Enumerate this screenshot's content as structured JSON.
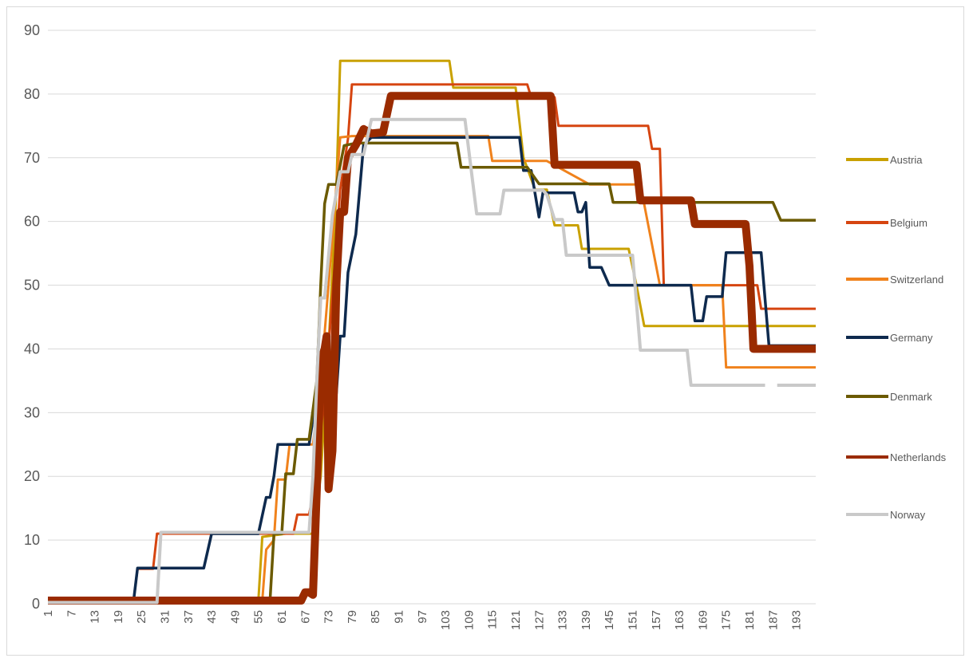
{
  "chart_data": {
    "type": "line",
    "title": "",
    "xlabel": "",
    "ylabel": "",
    "ylim": [
      0,
      90
    ],
    "y_ticks": [
      "0",
      "10",
      "20",
      "30",
      "40",
      "50",
      "60",
      "70",
      "80",
      "90"
    ],
    "x_range": [
      1,
      198
    ],
    "x_tick_labels": [
      "1",
      "7",
      "13",
      "19",
      "25",
      "31",
      "37",
      "43",
      "49",
      "55",
      "61",
      "67",
      "73",
      "79",
      "85",
      "91",
      "97",
      "103",
      "109",
      "115",
      "121",
      "127",
      "133",
      "139",
      "145",
      "151",
      "157",
      "163",
      "169",
      "175",
      "181",
      "187",
      "193"
    ],
    "grid": "horizontal",
    "legend_position": "right",
    "series": [
      {
        "name": "Austria",
        "color": "#c9a100",
        "points": [
          [
            1,
            0.5
          ],
          [
            55,
            0.5
          ],
          [
            56,
            10.5
          ],
          [
            62,
            11
          ],
          [
            69,
            11
          ],
          [
            71,
            20
          ],
          [
            73,
            40
          ],
          [
            75,
            65
          ],
          [
            76,
            85.2
          ],
          [
            104,
            85.2
          ],
          [
            105,
            81
          ],
          [
            121,
            81
          ],
          [
            123,
            70
          ],
          [
            126,
            65
          ],
          [
            129,
            65
          ],
          [
            131,
            59.4
          ],
          [
            137,
            59.4
          ],
          [
            138,
            55.7
          ],
          [
            150,
            55.7
          ],
          [
            152,
            50
          ],
          [
            154,
            43.6
          ],
          [
            198,
            43.6
          ]
        ]
      },
      {
        "name": "Belgium",
        "color": "#d64510",
        "points": [
          [
            1,
            0.5
          ],
          [
            23,
            0.5
          ],
          [
            24,
            5.5
          ],
          [
            28,
            5.5
          ],
          [
            29,
            11
          ],
          [
            64,
            11
          ],
          [
            65,
            14
          ],
          [
            68,
            14
          ],
          [
            70,
            20
          ],
          [
            73,
            40
          ],
          [
            76,
            65
          ],
          [
            78,
            73
          ],
          [
            79,
            81.5
          ],
          [
            124,
            81.5
          ],
          [
            125,
            79.5
          ],
          [
            131,
            79.5
          ],
          [
            132,
            75
          ],
          [
            155,
            75
          ],
          [
            156,
            71.4
          ],
          [
            158,
            71.4
          ],
          [
            159,
            50
          ],
          [
            162,
            50
          ],
          [
            163,
            50
          ],
          [
            183,
            50
          ],
          [
            184,
            46.3
          ],
          [
            198,
            46.3
          ]
        ]
      },
      {
        "name": "Switzerland",
        "color": "#f0821c",
        "points": [
          [
            1,
            0.5
          ],
          [
            56,
            0.5
          ],
          [
            57,
            8.5
          ],
          [
            59,
            10
          ],
          [
            60,
            19.5
          ],
          [
            62,
            19.5
          ],
          [
            63,
            25
          ],
          [
            67,
            25
          ],
          [
            69,
            25
          ],
          [
            71,
            35
          ],
          [
            73,
            50
          ],
          [
            76,
            73.2
          ],
          [
            79,
            73.4
          ],
          [
            114,
            73.4
          ],
          [
            115,
            69.5
          ],
          [
            128,
            69.5
          ],
          [
            129,
            69.5
          ],
          [
            140,
            65.8
          ],
          [
            153,
            65.8
          ],
          [
            158,
            50
          ],
          [
            174,
            50
          ],
          [
            175,
            37.1
          ],
          [
            198,
            37.1
          ]
        ]
      },
      {
        "name": "Germany",
        "color": "#0e2a4e",
        "points": [
          [
            1,
            0.5
          ],
          [
            23,
            0.5
          ],
          [
            24,
            5.6
          ],
          [
            41,
            5.6
          ],
          [
            43,
            11
          ],
          [
            55,
            11
          ],
          [
            57,
            16.7
          ],
          [
            58,
            16.7
          ],
          [
            59,
            20
          ],
          [
            60,
            25
          ],
          [
            66,
            25
          ],
          [
            68,
            25
          ],
          [
            70,
            33
          ],
          [
            72,
            35
          ],
          [
            73,
            33
          ],
          [
            75,
            33
          ],
          [
            76,
            42
          ],
          [
            77,
            42
          ],
          [
            78,
            52
          ],
          [
            80,
            58
          ],
          [
            82,
            72
          ],
          [
            84,
            73.2
          ],
          [
            122,
            73.2
          ],
          [
            123,
            68
          ],
          [
            125,
            68
          ],
          [
            127,
            60.7
          ],
          [
            128,
            64.5
          ],
          [
            136,
            64.5
          ],
          [
            137,
            61.5
          ],
          [
            138,
            61.5
          ],
          [
            139,
            63
          ],
          [
            140,
            52.8
          ],
          [
            143,
            52.8
          ],
          [
            145,
            50
          ],
          [
            166,
            50
          ],
          [
            167,
            44.4
          ],
          [
            169,
            44.4
          ],
          [
            170,
            48.2
          ],
          [
            174,
            48.2
          ],
          [
            175,
            55.1
          ],
          [
            184,
            55.1
          ],
          [
            186,
            40.5
          ],
          [
            198,
            40.5
          ]
        ]
      },
      {
        "name": "Denmark",
        "color": "#6b5a00",
        "points": [
          [
            1,
            0.5
          ],
          [
            58,
            0.5
          ],
          [
            59,
            11
          ],
          [
            61,
            11
          ],
          [
            62,
            20.4
          ],
          [
            64,
            20.4
          ],
          [
            65,
            25.8
          ],
          [
            68,
            25.8
          ],
          [
            70,
            35
          ],
          [
            71,
            50
          ],
          [
            72,
            62.8
          ],
          [
            73,
            65.8
          ],
          [
            75,
            65.8
          ],
          [
            77,
            71.9
          ],
          [
            80,
            72.3
          ],
          [
            106,
            72.3
          ],
          [
            107,
            68.5
          ],
          [
            123,
            68.5
          ],
          [
            124,
            68.5
          ],
          [
            127,
            65.9
          ],
          [
            145,
            65.9
          ],
          [
            146,
            63
          ],
          [
            160,
            63
          ],
          [
            161,
            63
          ],
          [
            187,
            63
          ],
          [
            189,
            60.2
          ],
          [
            198,
            60.2
          ]
        ]
      },
      {
        "name": "Netherlands",
        "color": "#9a2b00",
        "points": [
          [
            1,
            0.5
          ],
          [
            66,
            0.5
          ],
          [
            67,
            1.8
          ],
          [
            68,
            1.8
          ],
          [
            69,
            1.4
          ],
          [
            70,
            18
          ],
          [
            71,
            38
          ],
          [
            72,
            40
          ],
          [
            72.5,
            42
          ],
          [
            73,
            18
          ],
          [
            74,
            24
          ],
          [
            75,
            50
          ],
          [
            76,
            61.5
          ],
          [
            77,
            61.5
          ],
          [
            78,
            70
          ],
          [
            80,
            72
          ],
          [
            82,
            74.5
          ],
          [
            84,
            73.8
          ],
          [
            87,
            74
          ],
          [
            89,
            79.7
          ],
          [
            130,
            79.7
          ],
          [
            131,
            68.9
          ],
          [
            152,
            68.9
          ],
          [
            153,
            63.3
          ],
          [
            166,
            63.3
          ],
          [
            167,
            59.6
          ],
          [
            180,
            59.6
          ],
          [
            181,
            53
          ],
          [
            182,
            40
          ],
          [
            198,
            40
          ]
        ]
      },
      {
        "name": "Norway",
        "color": "#c9c9c9",
        "points": [
          [
            1,
            0.2
          ],
          [
            29,
            0.2
          ],
          [
            30,
            11.2
          ],
          [
            68,
            11.2
          ],
          [
            69,
            20
          ],
          [
            70,
            35
          ],
          [
            71,
            48
          ],
          [
            72,
            48
          ],
          [
            74,
            61
          ],
          [
            76,
            67.8
          ],
          [
            78,
            67.8
          ],
          [
            79,
            70.5
          ],
          [
            82,
            70.5
          ],
          [
            84,
            76
          ],
          [
            108,
            76
          ],
          [
            111,
            61.2
          ],
          [
            117,
            61.2
          ],
          [
            118,
            64.9
          ],
          [
            128,
            64.9
          ],
          [
            129,
            64.2
          ],
          [
            131,
            60.3
          ],
          [
            133,
            60.3
          ],
          [
            134,
            54.7
          ],
          [
            150,
            54.7
          ],
          [
            151,
            54.7
          ],
          [
            153,
            39.8
          ],
          [
            165,
            39.8
          ],
          [
            166,
            34.3
          ],
          [
            185,
            34.3
          ],
          [
            185.1,
            null
          ],
          [
            188,
            null
          ],
          [
            188.1,
            34.3
          ],
          [
            198,
            34.3
          ]
        ]
      }
    ]
  }
}
